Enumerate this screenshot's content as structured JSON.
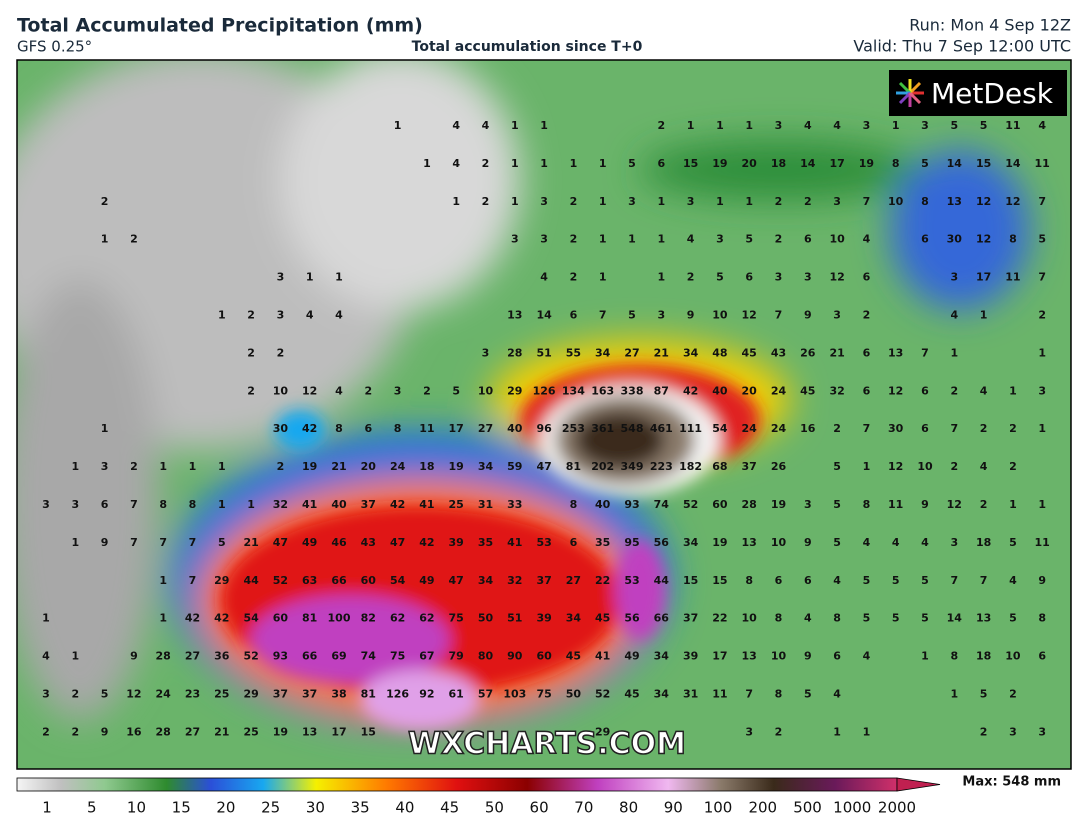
{
  "header": {
    "title": "Total Accumulated Precipitation (mm)",
    "model": "GFS 0.25°",
    "subtitle": "Total accumulation since T+0",
    "run": "Run: Mon 4 Sep 12Z",
    "valid": "Valid: Thu 7 Sep 12:00 UTC"
  },
  "logo": "MetDesk",
  "watermark": "WXCHARTS.COM",
  "grid": {
    "rows": [
      [
        null,
        null,
        null,
        null,
        null,
        null,
        null,
        null,
        null,
        null,
        null,
        null,
        1,
        null,
        4,
        4,
        1,
        1,
        null,
        null,
        null,
        2,
        1,
        1,
        1,
        3,
        4,
        4,
        3,
        1,
        3,
        5,
        5,
        11,
        4
      ],
      [
        null,
        null,
        null,
        null,
        null,
        null,
        null,
        null,
        null,
        null,
        null,
        null,
        null,
        1,
        4,
        2,
        1,
        1,
        1,
        1,
        5,
        6,
        15,
        19,
        20,
        18,
        14,
        17,
        19,
        8,
        5,
        14,
        15,
        14,
        11
      ],
      [
        null,
        null,
        2,
        null,
        null,
        null,
        null,
        null,
        null,
        null,
        null,
        null,
        null,
        null,
        1,
        2,
        1,
        3,
        2,
        1,
        3,
        1,
        3,
        1,
        1,
        2,
        2,
        3,
        7,
        10,
        8,
        13,
        12,
        12,
        7
      ],
      [
        null,
        null,
        1,
        2,
        null,
        null,
        null,
        null,
        null,
        null,
        null,
        null,
        null,
        null,
        null,
        null,
        3,
        3,
        2,
        1,
        1,
        1,
        4,
        3,
        5,
        2,
        6,
        10,
        4,
        null,
        6,
        30,
        12,
        8,
        5
      ],
      [
        null,
        null,
        null,
        null,
        null,
        null,
        null,
        null,
        3,
        1,
        1,
        null,
        null,
        null,
        null,
        null,
        null,
        4,
        2,
        1,
        null,
        1,
        2,
        5,
        6,
        3,
        3,
        12,
        6,
        null,
        null,
        3,
        17,
        11,
        7
      ],
      [
        null,
        null,
        null,
        null,
        null,
        null,
        1,
        2,
        3,
        4,
        4,
        null,
        null,
        null,
        null,
        null,
        13,
        14,
        6,
        7,
        5,
        3,
        9,
        10,
        12,
        7,
        9,
        3,
        2,
        null,
        null,
        4,
        1,
        null,
        2
      ],
      [
        null,
        null,
        null,
        null,
        null,
        null,
        null,
        2,
        2,
        null,
        null,
        null,
        null,
        null,
        null,
        3,
        28,
        51,
        55,
        34,
        27,
        21,
        34,
        48,
        45,
        43,
        26,
        21,
        6,
        13,
        7,
        1,
        null,
        null,
        1
      ],
      [
        null,
        null,
        null,
        null,
        null,
        null,
        null,
        2,
        10,
        12,
        4,
        2,
        3,
        2,
        5,
        10,
        29,
        126,
        134,
        163,
        338,
        87,
        42,
        40,
        20,
        24,
        45,
        32,
        6,
        12,
        6,
        2,
        4,
        1,
        3
      ],
      [
        null,
        null,
        1,
        null,
        null,
        null,
        null,
        null,
        30,
        42,
        8,
        6,
        8,
        11,
        17,
        27,
        40,
        96,
        253,
        361,
        548,
        461,
        111,
        54,
        24,
        24,
        16,
        2,
        7,
        30,
        6,
        7,
        2,
        2,
        1
      ],
      [
        null,
        1,
        3,
        2,
        1,
        1,
        1,
        null,
        2,
        19,
        21,
        20,
        24,
        18,
        19,
        34,
        59,
        47,
        81,
        202,
        349,
        223,
        182,
        68,
        37,
        26,
        null,
        5,
        1,
        12,
        10,
        2,
        4,
        2,
        null
      ],
      [
        3,
        3,
        6,
        7,
        8,
        8,
        1,
        1,
        32,
        41,
        40,
        37,
        42,
        41,
        25,
        31,
        33,
        null,
        8,
        40,
        93,
        74,
        52,
        60,
        28,
        19,
        3,
        5,
        8,
        11,
        9,
        12,
        2,
        1,
        1
      ],
      [
        null,
        1,
        9,
        7,
        7,
        7,
        5,
        21,
        47,
        49,
        46,
        43,
        47,
        42,
        39,
        35,
        41,
        53,
        6,
        35,
        95,
        56,
        34,
        19,
        13,
        10,
        9,
        5,
        4,
        4,
        4,
        3,
        18,
        5,
        11
      ],
      [
        null,
        null,
        null,
        null,
        1,
        7,
        29,
        44,
        52,
        63,
        66,
        60,
        54,
        49,
        47,
        34,
        32,
        37,
        27,
        22,
        53,
        44,
        15,
        15,
        8,
        6,
        6,
        4,
        5,
        5,
        5,
        7,
        7,
        4,
        9
      ],
      [
        1,
        null,
        null,
        null,
        1,
        42,
        42,
        54,
        60,
        81,
        100,
        82,
        62,
        62,
        75,
        50,
        51,
        39,
        34,
        45,
        56,
        66,
        37,
        22,
        10,
        8,
        4,
        8,
        5,
        5,
        5,
        14,
        13,
        5,
        8
      ],
      [
        4,
        1,
        null,
        9,
        28,
        27,
        36,
        52,
        93,
        66,
        69,
        74,
        75,
        67,
        79,
        80,
        90,
        60,
        45,
        41,
        49,
        34,
        39,
        17,
        13,
        10,
        9,
        6,
        4,
        null,
        1,
        8,
        18,
        10,
        6
      ],
      [
        3,
        2,
        5,
        12,
        24,
        23,
        25,
        29,
        37,
        37,
        38,
        81,
        126,
        92,
        61,
        57,
        103,
        75,
        50,
        52,
        45,
        34,
        31,
        11,
        7,
        8,
        5,
        4,
        null,
        null,
        null,
        1,
        5,
        2,
        null
      ],
      [
        2,
        2,
        9,
        16,
        28,
        27,
        21,
        25,
        19,
        13,
        17,
        15,
        null,
        null,
        null,
        null,
        null,
        null,
        null,
        29,
        null,
        null,
        null,
        null,
        3,
        2,
        null,
        1,
        1,
        null,
        null,
        null,
        2,
        3,
        3
      ]
    ]
  },
  "colorbar": {
    "labels": [
      1,
      5,
      10,
      15,
      20,
      25,
      30,
      35,
      40,
      45,
      50,
      60,
      70,
      80,
      90,
      100,
      200,
      500,
      1000,
      2000
    ],
    "max_label": "Max: 548 mm"
  }
}
